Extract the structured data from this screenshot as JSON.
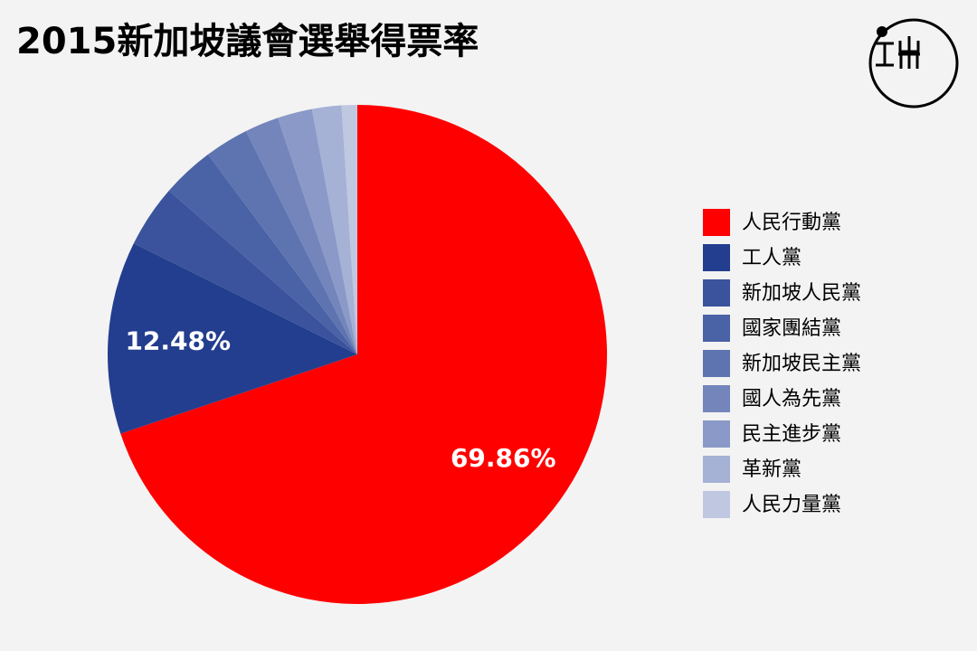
{
  "chart_data": {
    "type": "pie",
    "title": "2015新加坡議會選舉得票率",
    "categories": [
      "人民行動黨",
      "工人黨",
      "新加坡人民黨",
      "國家團結黨",
      "新加坡民主黨",
      "國人為先黨",
      "民主進步黨",
      "革新黨",
      "人民力量黨"
    ],
    "values": [
      69.86,
      12.48,
      4.05,
      3.4,
      2.85,
      2.2,
      2.25,
      1.9,
      1.01
    ],
    "value_labels": [
      "69.86%",
      "12.48%",
      null,
      null,
      null,
      null,
      null,
      null,
      null
    ],
    "colors": [
      "#ff0000",
      "#233e8e",
      "#3a539c",
      "#4a62a6",
      "#5d74b0",
      "#7385bb",
      "#8a99c7",
      "#a5b1d5",
      "#bfc7e1"
    ],
    "legend": "right"
  }
}
